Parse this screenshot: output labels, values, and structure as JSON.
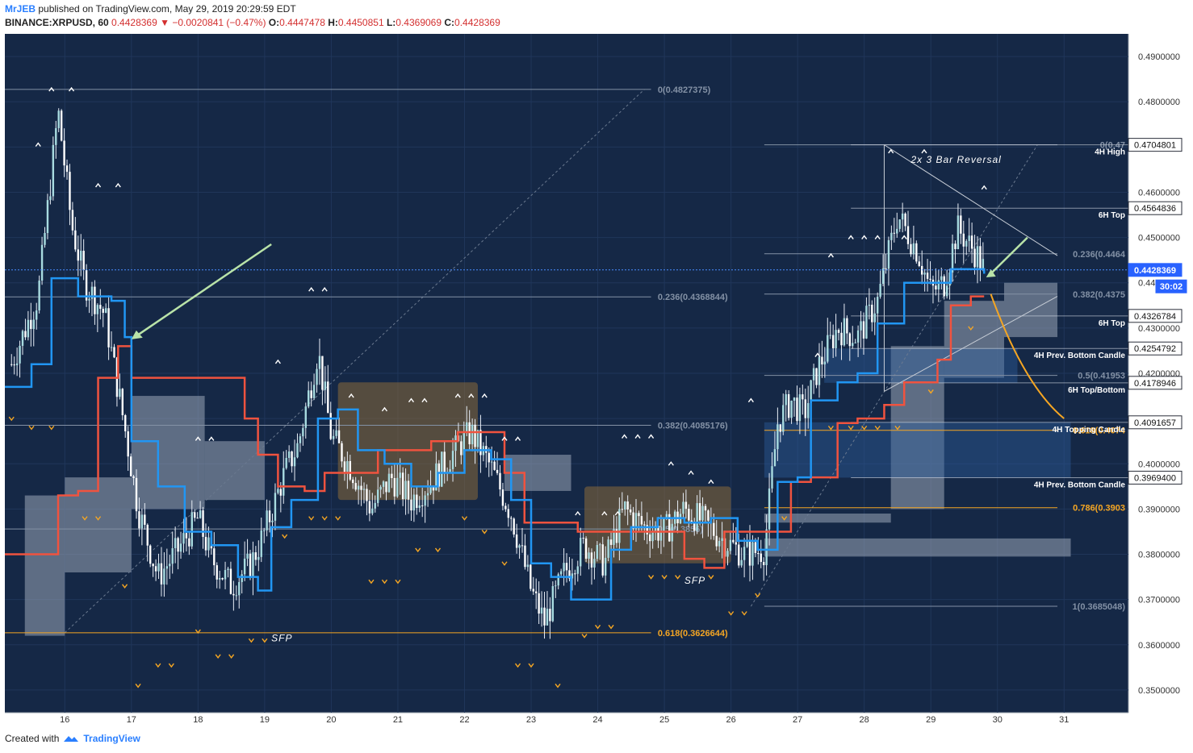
{
  "header": {
    "author": "MrJEB",
    "published": "published on TradingView.com, May 29, 2019 20:29:59 EDT",
    "symbol": "BINANCE:XRPUSD, 60",
    "last": "0.4428369",
    "change": "−0.0020841 (−0.47%)",
    "o_label": "O:",
    "o": "0.4447478",
    "h_label": "H:",
    "h": "0.4450851",
    "l_label": "L:",
    "l": "0.4369069",
    "c_label": "C:",
    "c": "0.4428369"
  },
  "footer": {
    "created_with": "Created with",
    "brand": "TradingView"
  },
  "colors": {
    "background": "#152846",
    "grid": "#20365a",
    "candle": "#e8eef7",
    "blue_line": "#2196f3",
    "red_line": "#f0533f",
    "cloud": "#9aa6b8",
    "brown_zone": "#8a6a3a",
    "orange": "#f5a623",
    "arrow": "#b9e3a8",
    "price_tag": "#2962ff"
  },
  "chart_data": {
    "type": "candlestick",
    "symbol": "XRPUSD",
    "ylim": [
      0.345,
      0.495
    ],
    "x_ticks": [
      "16",
      "17",
      "18",
      "19",
      "20",
      "21",
      "22",
      "23",
      "24",
      "25",
      "26",
      "27",
      "28",
      "29",
      "30",
      "31"
    ],
    "y_ticks": [
      "0.4900000",
      "0.4800000",
      "0.4700000",
      "0.4600000",
      "0.4500000",
      "0.4400000",
      "0.4300000",
      "0.4200000",
      "0.4100000",
      "0.4000000",
      "0.3900000",
      "0.3800000",
      "0.3700000",
      "0.3600000",
      "0.3500000"
    ],
    "price_tags": [
      {
        "label": "0.4704801",
        "value": 0.4704801,
        "style": "white"
      },
      {
        "label": "0.4564836",
        "value": 0.4564836,
        "style": "white"
      },
      {
        "label": "0.4428369",
        "value": 0.4428369,
        "style": "blue"
      },
      {
        "label": "30:02",
        "value": 0.4392,
        "style": "blue"
      },
      {
        "label": "0.4326784",
        "value": 0.4326784,
        "style": "white"
      },
      {
        "label": "0.4254792",
        "value": 0.4254792,
        "style": "white"
      },
      {
        "label": "0.4178946",
        "value": 0.4178946,
        "style": "white"
      },
      {
        "label": "0.4091657",
        "value": 0.4091657,
        "style": "white"
      },
      {
        "label": "0.3969400",
        "value": 0.39694,
        "style": "white"
      }
    ],
    "fib_left": [
      {
        "label": "0(0.4827375)",
        "value": 0.4827375,
        "color": "gray"
      },
      {
        "label": "0.236(0.4368844)",
        "value": 0.4368844,
        "color": "gray"
      },
      {
        "label": "0.382(0.4085176)",
        "value": 0.4085176,
        "color": "gray"
      },
      {
        "label": "0.5(0.3856)",
        "value": 0.3856,
        "color": "gray"
      },
      {
        "label": "0.618(0.3626644)",
        "value": 0.3626644,
        "color": "orange"
      }
    ],
    "fib_right": [
      {
        "label": "0(0.47",
        "value": 0.4704801,
        "color": "gray"
      },
      {
        "label": "0.236(0.4464",
        "value": 0.4464,
        "color": "gray"
      },
      {
        "label": "0.382(0.4375",
        "value": 0.4375,
        "color": "gray"
      },
      {
        "label": "0.5(0.41953",
        "value": 0.41953,
        "color": "gray"
      },
      {
        "label": "0.618(0.4074",
        "value": 0.4074,
        "color": "orange"
      },
      {
        "label": "0.786(0.3903",
        "value": 0.3903,
        "color": "orange"
      },
      {
        "label": "1(0.3685048)",
        "value": 0.3685048,
        "color": "gray"
      }
    ],
    "level_labels": [
      {
        "text": "4H High",
        "value": 0.4704801
      },
      {
        "text": "6H Top",
        "value": 0.4564836
      },
      {
        "text": "6H Top",
        "value": 0.4326784
      },
      {
        "text": "4H Prev. Bottom Candle",
        "value": 0.4254792
      },
      {
        "text": "6H Top/Bottom",
        "value": 0.4178946
      },
      {
        "text": "4H Topping Candle",
        "value": 0.4091657
      },
      {
        "text": "4H Prev. Bottom Candle",
        "value": 0.39694
      }
    ],
    "annotations": [
      {
        "text": "2x 3 Bar Reversal",
        "x_day": 28.7,
        "value": 0.4665
      },
      {
        "text": "SFP",
        "x_day": 19.1,
        "value": 0.3608
      },
      {
        "text": "SFP",
        "x_day": 25.3,
        "value": 0.3735
      }
    ],
    "price_path": [
      [
        15.2,
        0.422
      ],
      [
        15.6,
        0.437
      ],
      [
        15.9,
        0.478
      ],
      [
        16.1,
        0.453
      ],
      [
        16.3,
        0.44
      ],
      [
        16.6,
        0.433
      ],
      [
        16.9,
        0.408
      ],
      [
        17.1,
        0.39
      ],
      [
        17.4,
        0.375
      ],
      [
        17.7,
        0.381
      ],
      [
        18.0,
        0.388
      ],
      [
        18.2,
        0.379
      ],
      [
        18.5,
        0.373
      ],
      [
        18.8,
        0.378
      ],
      [
        19.0,
        0.385
      ],
      [
        19.3,
        0.398
      ],
      [
        19.5,
        0.404
      ],
      [
        19.8,
        0.425
      ],
      [
        20.0,
        0.406
      ],
      [
        20.3,
        0.399
      ],
      [
        20.6,
        0.39
      ],
      [
        20.9,
        0.397
      ],
      [
        21.2,
        0.392
      ],
      [
        21.5,
        0.396
      ],
      [
        21.8,
        0.402
      ],
      [
        22.1,
        0.407
      ],
      [
        22.4,
        0.399
      ],
      [
        22.7,
        0.389
      ],
      [
        23.0,
        0.372
      ],
      [
        23.2,
        0.365
      ],
      [
        23.5,
        0.376
      ],
      [
        23.8,
        0.382
      ],
      [
        24.1,
        0.378
      ],
      [
        24.4,
        0.39
      ],
      [
        24.7,
        0.386
      ],
      [
        25.0,
        0.385
      ],
      [
        25.3,
        0.39
      ],
      [
        25.6,
        0.387
      ],
      [
        25.9,
        0.383
      ],
      [
        26.2,
        0.38
      ],
      [
        26.5,
        0.381
      ],
      [
        26.7,
        0.409
      ],
      [
        26.9,
        0.414
      ],
      [
        27.1,
        0.411
      ],
      [
        27.3,
        0.421
      ],
      [
        27.6,
        0.43
      ],
      [
        27.9,
        0.428
      ],
      [
        28.2,
        0.436
      ],
      [
        28.5,
        0.455
      ],
      [
        28.8,
        0.447
      ],
      [
        29.0,
        0.438
      ],
      [
        29.2,
        0.44
      ],
      [
        29.4,
        0.452
      ],
      [
        29.7,
        0.446
      ],
      [
        29.8,
        0.4428
      ]
    ],
    "blue_line": [
      [
        15.1,
        0.417
      ],
      [
        15.5,
        0.422
      ],
      [
        15.8,
        0.441
      ],
      [
        16.2,
        0.437
      ],
      [
        16.7,
        0.436
      ],
      [
        16.9,
        0.428
      ],
      [
        17.0,
        0.405
      ],
      [
        17.4,
        0.395
      ],
      [
        17.8,
        0.385
      ],
      [
        18.2,
        0.382
      ],
      [
        18.6,
        0.375
      ],
      [
        18.9,
        0.372
      ],
      [
        19.1,
        0.386
      ],
      [
        19.4,
        0.392
      ],
      [
        19.8,
        0.41
      ],
      [
        20.1,
        0.412
      ],
      [
        20.4,
        0.403
      ],
      [
        20.8,
        0.4
      ],
      [
        21.2,
        0.395
      ],
      [
        21.6,
        0.398
      ],
      [
        22.0,
        0.403
      ],
      [
        22.4,
        0.401
      ],
      [
        22.7,
        0.392
      ],
      [
        23.0,
        0.378
      ],
      [
        23.3,
        0.375
      ],
      [
        23.6,
        0.37
      ],
      [
        23.9,
        0.37
      ],
      [
        24.2,
        0.381
      ],
      [
        24.5,
        0.386
      ],
      [
        24.9,
        0.388
      ],
      [
        25.3,
        0.387
      ],
      [
        25.7,
        0.388
      ],
      [
        26.1,
        0.383
      ],
      [
        26.4,
        0.381
      ],
      [
        26.7,
        0.396
      ],
      [
        27.0,
        0.397
      ],
      [
        27.2,
        0.414
      ],
      [
        27.6,
        0.418
      ],
      [
        27.9,
        0.42
      ],
      [
        28.2,
        0.431
      ],
      [
        28.6,
        0.44
      ],
      [
        29.0,
        0.44
      ],
      [
        29.3,
        0.443
      ],
      [
        29.7,
        0.443
      ],
      [
        29.8,
        0.442
      ]
    ],
    "red_line": [
      [
        15.1,
        0.38
      ],
      [
        15.5,
        0.38
      ],
      [
        15.9,
        0.393
      ],
      [
        16.2,
        0.394
      ],
      [
        16.5,
        0.419
      ],
      [
        16.8,
        0.426
      ],
      [
        17.0,
        0.419
      ],
      [
        17.5,
        0.419
      ],
      [
        18.0,
        0.419
      ],
      [
        18.4,
        0.419
      ],
      [
        18.7,
        0.41
      ],
      [
        18.9,
        0.402
      ],
      [
        19.2,
        0.395
      ],
      [
        19.6,
        0.394
      ],
      [
        19.9,
        0.398
      ],
      [
        20.3,
        0.398
      ],
      [
        20.7,
        0.403
      ],
      [
        21.1,
        0.403
      ],
      [
        21.5,
        0.405
      ],
      [
        21.9,
        0.407
      ],
      [
        22.3,
        0.407
      ],
      [
        22.6,
        0.398
      ],
      [
        22.9,
        0.387
      ],
      [
        23.3,
        0.387
      ],
      [
        23.7,
        0.385
      ],
      [
        24.1,
        0.385
      ],
      [
        24.5,
        0.385
      ],
      [
        24.9,
        0.385
      ],
      [
        25.3,
        0.379
      ],
      [
        25.6,
        0.377
      ],
      [
        25.9,
        0.385
      ],
      [
        26.3,
        0.385
      ],
      [
        26.6,
        0.385
      ],
      [
        26.9,
        0.396
      ],
      [
        27.2,
        0.397
      ],
      [
        27.6,
        0.409
      ],
      [
        27.9,
        0.41
      ],
      [
        28.3,
        0.413
      ],
      [
        28.6,
        0.418
      ],
      [
        28.9,
        0.418
      ],
      [
        29.1,
        0.423
      ],
      [
        29.3,
        0.435
      ],
      [
        29.6,
        0.437
      ],
      [
        29.8,
        0.437
      ]
    ],
    "cloud_zones": [
      {
        "d1": 15.4,
        "d2": 16.0,
        "low": 0.362,
        "high": 0.393
      },
      {
        "d1": 16.0,
        "d2": 17.0,
        "low": 0.376,
        "high": 0.397
      },
      {
        "d1": 17.0,
        "d2": 18.1,
        "low": 0.39,
        "high": 0.415
      },
      {
        "d1": 18.1,
        "d2": 19.0,
        "low": 0.392,
        "high": 0.405
      },
      {
        "d1": 22.6,
        "d2": 23.6,
        "low": 0.394,
        "high": 0.402
      },
      {
        "d1": 26.5,
        "d2": 28.4,
        "low": 0.387,
        "high": 0.389
      },
      {
        "d1": 26.5,
        "d2": 31.1,
        "low": 0.3795,
        "high": 0.3835
      },
      {
        "d1": 28.4,
        "d2": 29.2,
        "low": 0.39,
        "high": 0.426
      },
      {
        "d1": 29.2,
        "d2": 30.1,
        "low": 0.419,
        "high": 0.436
      },
      {
        "d1": 30.1,
        "d2": 30.9,
        "low": 0.428,
        "high": 0.44
      }
    ],
    "brown_zones": [
      {
        "d1": 20.1,
        "d2": 22.2,
        "low": 0.392,
        "high": 0.418
      },
      {
        "d1": 23.8,
        "d2": 26.0,
        "low": 0.378,
        "high": 0.395
      }
    ],
    "box_zones": [
      {
        "d1": 26.5,
        "d2": 31.1,
        "low": 0.39694,
        "high": 0.4091657
      },
      {
        "d1": 27.4,
        "d2": 30.3,
        "low": 0.4178946,
        "high": 0.4254792
      }
    ],
    "triangle": [
      [
        28.3,
        0.4704801
      ],
      [
        30.9,
        0.446
      ],
      [
        28.3,
        0.416
      ],
      [
        30.9,
        0.437
      ]
    ],
    "markers_up": [
      [
        15.8,
        0.4827
      ],
      [
        16.1,
        0.4827
      ],
      [
        15.6,
        0.4705
      ],
      [
        16.5,
        0.4615
      ],
      [
        16.8,
        0.4615
      ],
      [
        19.7,
        0.4385
      ],
      [
        19.9,
        0.4385
      ],
      [
        19.2,
        0.4225
      ],
      [
        18.0,
        0.4055
      ],
      [
        18.2,
        0.4055
      ],
      [
        20.3,
        0.415
      ],
      [
        20.8,
        0.412
      ],
      [
        21.2,
        0.414
      ],
      [
        21.4,
        0.414
      ],
      [
        21.9,
        0.415
      ],
      [
        22.1,
        0.415
      ],
      [
        22.3,
        0.415
      ],
      [
        22.6,
        0.4055
      ],
      [
        22.8,
        0.4055
      ],
      [
        24.4,
        0.406
      ],
      [
        24.6,
        0.406
      ],
      [
        24.8,
        0.406
      ],
      [
        25.1,
        0.4
      ],
      [
        25.4,
        0.398
      ],
      [
        25.7,
        0.396
      ],
      [
        23.7,
        0.389
      ],
      [
        24.1,
        0.389
      ],
      [
        24.3,
        0.389
      ],
      [
        26.3,
        0.414
      ],
      [
        27.3,
        0.424
      ],
      [
        27.5,
        0.446
      ],
      [
        27.8,
        0.45
      ],
      [
        28.0,
        0.45
      ],
      [
        28.2,
        0.45
      ],
      [
        28.6,
        0.45
      ],
      [
        28.4,
        0.469
      ],
      [
        28.9,
        0.469
      ],
      [
        29.8,
        0.461
      ]
    ],
    "markers_down": [
      [
        15.2,
        0.41
      ],
      [
        15.5,
        0.408
      ],
      [
        15.8,
        0.408
      ],
      [
        16.3,
        0.388
      ],
      [
        16.5,
        0.388
      ],
      [
        16.9,
        0.373
      ],
      [
        17.1,
        0.351
      ],
      [
        17.4,
        0.3555
      ],
      [
        17.6,
        0.3555
      ],
      [
        18.0,
        0.363
      ],
      [
        18.3,
        0.3575
      ],
      [
        18.5,
        0.3575
      ],
      [
        18.8,
        0.361
      ],
      [
        19.0,
        0.361
      ],
      [
        19.3,
        0.384
      ],
      [
        19.7,
        0.388
      ],
      [
        19.9,
        0.388
      ],
      [
        20.1,
        0.388
      ],
      [
        20.6,
        0.374
      ],
      [
        20.8,
        0.374
      ],
      [
        21.0,
        0.374
      ],
      [
        21.3,
        0.381
      ],
      [
        21.6,
        0.381
      ],
      [
        22.0,
        0.388
      ],
      [
        22.3,
        0.385
      ],
      [
        22.6,
        0.378
      ],
      [
        22.8,
        0.3555
      ],
      [
        23.0,
        0.3555
      ],
      [
        23.4,
        0.351
      ],
      [
        23.8,
        0.362
      ],
      [
        24.0,
        0.364
      ],
      [
        24.2,
        0.364
      ],
      [
        24.8,
        0.375
      ],
      [
        25.0,
        0.375
      ],
      [
        25.2,
        0.375
      ],
      [
        25.7,
        0.375
      ],
      [
        26.0,
        0.367
      ],
      [
        26.2,
        0.367
      ],
      [
        26.4,
        0.371
      ],
      [
        26.8,
        0.388
      ],
      [
        27.5,
        0.408
      ],
      [
        27.8,
        0.408
      ],
      [
        28.0,
        0.408
      ],
      [
        28.2,
        0.408
      ],
      [
        28.5,
        0.408
      ],
      [
        29.0,
        0.416
      ],
      [
        29.6,
        0.43
      ]
    ]
  }
}
